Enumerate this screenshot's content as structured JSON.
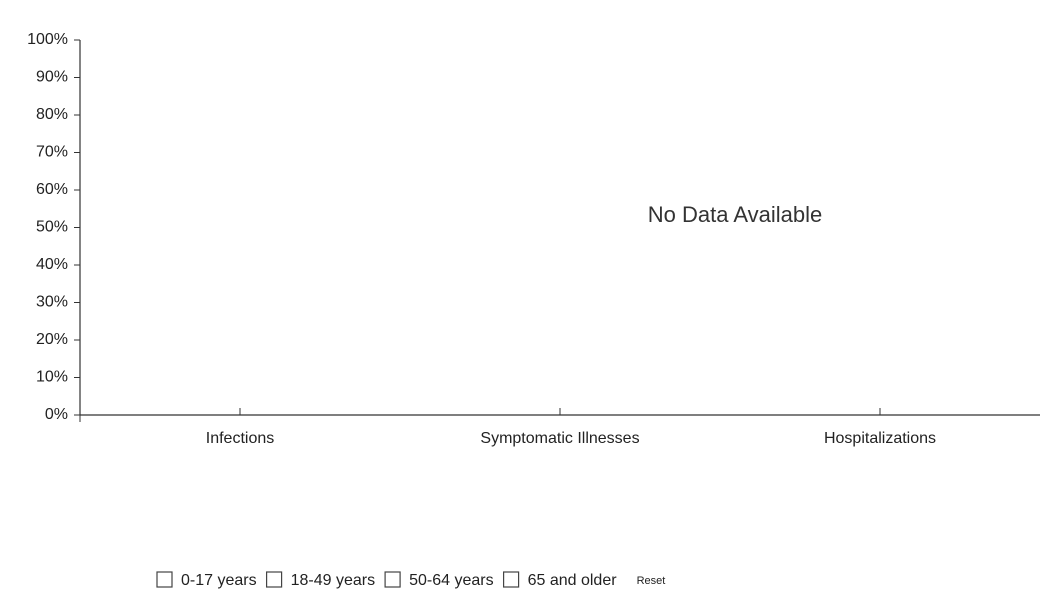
{
  "chart_data": {
    "type": "bar",
    "categories": [
      "Infections",
      "Symptomatic Illnesses",
      "Hospitalizations"
    ],
    "series": [
      {
        "name": "0-17 years",
        "values": [
          null,
          null,
          null
        ]
      },
      {
        "name": "18-49 years",
        "values": [
          null,
          null,
          null
        ]
      },
      {
        "name": "50-64 years",
        "values": [
          null,
          null,
          null
        ]
      },
      {
        "name": "65 and older",
        "values": [
          null,
          null,
          null
        ]
      }
    ],
    "ylim": [
      0,
      100
    ],
    "yticks": [
      {
        "value": 0,
        "label": "0%"
      },
      {
        "value": 10,
        "label": "10%"
      },
      {
        "value": 20,
        "label": "20%"
      },
      {
        "value": 30,
        "label": "30%"
      },
      {
        "value": 40,
        "label": "40%"
      },
      {
        "value": 50,
        "label": "50%"
      },
      {
        "value": 60,
        "label": "60%"
      },
      {
        "value": 70,
        "label": "70%"
      },
      {
        "value": 80,
        "label": "80%"
      },
      {
        "value": 90,
        "label": "90%"
      },
      {
        "value": 100,
        "label": "100%"
      }
    ],
    "annotation": "No Data Available",
    "reset_label": "Reset",
    "grid": false
  }
}
